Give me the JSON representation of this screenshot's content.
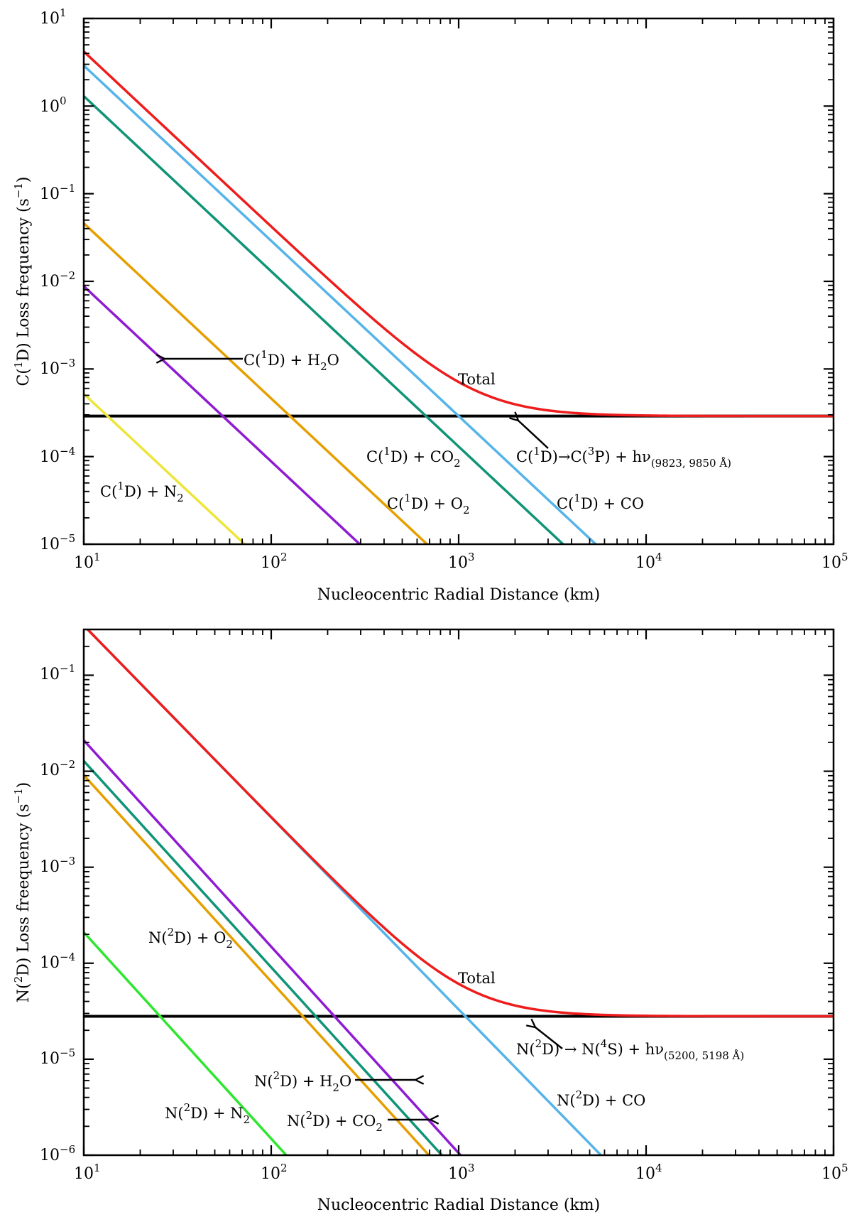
{
  "chart_data": [
    {
      "type": "line",
      "xscale": "log",
      "yscale": "log",
      "xlim": [
        10,
        100000
      ],
      "ylim": [
        1e-05,
        10
      ],
      "xlabel": "Nucleocentric Radial Distance (km)",
      "ylabel_parts": [
        "C(",
        "1",
        "D) Loss frequency (s",
        "−1",
        ")"
      ],
      "x_ticks": [
        {
          "base": "10",
          "exp": "1"
        },
        {
          "base": "10",
          "exp": "2"
        },
        {
          "base": "10",
          "exp": "3"
        },
        {
          "base": "10",
          "exp": "4"
        },
        {
          "base": "10",
          "exp": "5"
        }
      ],
      "y_ticks": [
        {
          "base": "10",
          "exp": "−5"
        },
        {
          "base": "10",
          "exp": "−4"
        },
        {
          "base": "10",
          "exp": "−3"
        },
        {
          "base": "10",
          "exp": "−2"
        },
        {
          "base": "10",
          "exp": "−1"
        },
        {
          "base": "10",
          "exp": "0"
        },
        {
          "base": "10",
          "exp": "1"
        }
      ],
      "constant_loss": 0.00029,
      "series": [
        {
          "name": "Total",
          "color": "#ee1c1c",
          "kind": "total",
          "a": 4.2,
          "slope": 2
        },
        {
          "name": "C(1D) + CO",
          "color": "#56b4e9",
          "kind": "power",
          "a": 2.9,
          "slope": 2
        },
        {
          "name": "C(1D) + CO2",
          "color": "#109477",
          "kind": "power",
          "a": 1.3,
          "slope": 2
        },
        {
          "name": "C(1D) + O2",
          "color": "#e69f00",
          "kind": "power",
          "a": 0.046,
          "slope": 2
        },
        {
          "name": "C(1D) + H2O",
          "color": "#8f1bd2",
          "kind": "power",
          "a": 0.0088,
          "slope": 2
        },
        {
          "name": "C(1D) + N2",
          "color": "#ede53a",
          "kind": "power",
          "a": 0.00052,
          "slope": 2
        },
        {
          "name": "C(1D) → C(3P) + hν",
          "color": "#000000",
          "kind": "constant",
          "value": 0.00029
        }
      ],
      "annotations": {
        "total": "Total",
        "h2o": [
          "C(",
          "1",
          "D) + H",
          "2",
          "O"
        ],
        "co2": [
          "C(",
          "1",
          "D) + CO",
          "2"
        ],
        "rad": [
          "C(",
          "1",
          "D)→C(",
          "3",
          "P) + hν",
          "(9823, 9850 Å)"
        ],
        "n2": [
          "C(",
          "1",
          "D) + N",
          "2"
        ],
        "o2": [
          "C(",
          "1",
          "D) + O",
          "2"
        ],
        "co": [
          "C(",
          "1",
          "D) + CO"
        ]
      }
    },
    {
      "type": "line",
      "xscale": "log",
      "yscale": "log",
      "xlim": [
        10,
        100000
      ],
      "ylim": [
        1e-06,
        0.3
      ],
      "xlabel": "Nucleocentric Radial Distance (km)",
      "ylabel_parts": [
        "N(",
        "2",
        "D) Loss freequency (s",
        "−1",
        ")"
      ],
      "x_ticks": [
        {
          "base": "10",
          "exp": "1"
        },
        {
          "base": "10",
          "exp": "2"
        },
        {
          "base": "10",
          "exp": "3"
        },
        {
          "base": "10",
          "exp": "4"
        },
        {
          "base": "10",
          "exp": "5"
        }
      ],
      "y_ticks": [
        {
          "base": "10",
          "exp": "−6"
        },
        {
          "base": "10",
          "exp": "−5"
        },
        {
          "base": "10",
          "exp": "−4"
        },
        {
          "base": "10",
          "exp": "−3"
        },
        {
          "base": "10",
          "exp": "−2"
        },
        {
          "base": "10",
          "exp": "−1"
        }
      ],
      "constant_loss": 2.8e-05,
      "series": [
        {
          "name": "Total",
          "color": "#ee1c1c",
          "kind": "total",
          "a": 0.33,
          "slope": 2
        },
        {
          "name": "N(2D) + CO",
          "color": "#56b4e9",
          "kind": "power",
          "a": 0.33,
          "slope": 2
        },
        {
          "name": "N(2D) + H2O",
          "color": "#8f1bd2",
          "kind": "power",
          "a": 0.021,
          "slope": 2.15
        },
        {
          "name": "N(2D) + CO2",
          "color": "#109477",
          "kind": "power",
          "a": 0.0128,
          "slope": 2.15
        },
        {
          "name": "N(2D) + O2",
          "color": "#e69f00",
          "kind": "power",
          "a": 0.0091,
          "slope": 2.15
        },
        {
          "name": "N(2D) + N2",
          "color": "#2ee62e",
          "kind": "power",
          "a": 0.00021,
          "slope": 2.15
        },
        {
          "name": "N(2D) → N(4S) + hν",
          "color": "#000000",
          "kind": "constant",
          "value": 2.8e-05
        }
      ],
      "annotations": {
        "o2": [
          "N(",
          "2",
          "D) + O",
          "2"
        ],
        "total": "Total",
        "rad": [
          "N(",
          "2",
          "D) → N(",
          "4",
          "S) + hν",
          "(5200, 5198 Å)"
        ],
        "h2o": [
          "N(",
          "2",
          "D) + H",
          "2",
          "O"
        ],
        "co": [
          "N(",
          "2",
          "D) + CO"
        ],
        "n2": [
          "N(",
          "2",
          "D) + N",
          "2"
        ],
        "co2": [
          "N(",
          "2",
          "D) + CO",
          "2"
        ]
      }
    }
  ]
}
